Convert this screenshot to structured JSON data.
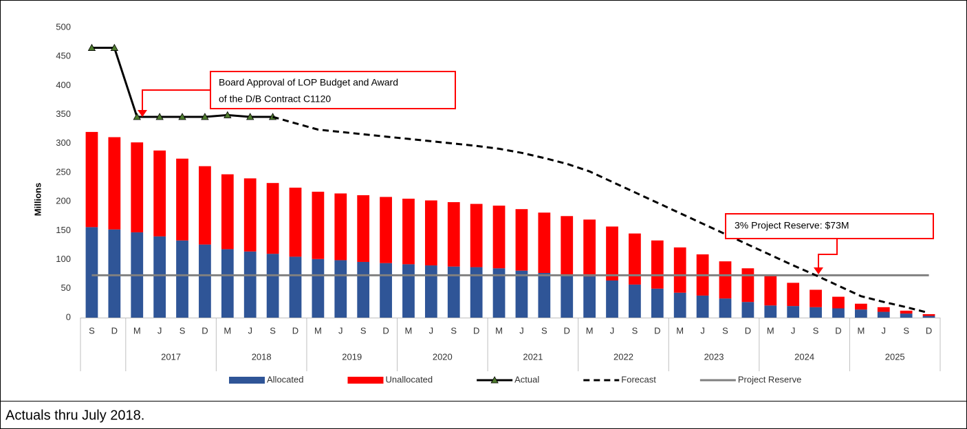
{
  "chart_data": {
    "type": "bar",
    "ylabel": "Millions",
    "ylim": [
      0,
      500
    ],
    "yticks": [
      0,
      50,
      100,
      150,
      200,
      250,
      300,
      350,
      400,
      450,
      500
    ],
    "groups": [
      {
        "label": null,
        "categories": [
          "S",
          "D"
        ]
      },
      {
        "label": "2017",
        "categories": [
          "M",
          "J",
          "S",
          "D"
        ]
      },
      {
        "label": "2018",
        "categories": [
          "M",
          "J",
          "S",
          "D"
        ]
      },
      {
        "label": "2019",
        "categories": [
          "M",
          "J",
          "S",
          "D"
        ]
      },
      {
        "label": "2020",
        "categories": [
          "M",
          "J",
          "S",
          "D"
        ]
      },
      {
        "label": "2021",
        "categories": [
          "M",
          "J",
          "S",
          "D"
        ]
      },
      {
        "label": "2022",
        "categories": [
          "M",
          "J",
          "S",
          "D"
        ]
      },
      {
        "label": "2023",
        "categories": [
          "M",
          "J",
          "S",
          "D"
        ]
      },
      {
        "label": "2024",
        "categories": [
          "M",
          "J",
          "S",
          "D"
        ]
      },
      {
        "label": "2025",
        "categories": [
          "M",
          "J",
          "S",
          "D"
        ]
      }
    ],
    "series": [
      {
        "name": "Allocated",
        "type": "bar",
        "color": "#2f5597",
        "values": [
          156,
          152,
          147,
          140,
          133,
          126,
          118,
          114,
          110,
          105,
          101,
          99,
          96,
          94,
          92,
          90,
          88,
          87,
          85,
          81,
          77,
          74,
          71,
          64,
          57,
          50,
          43,
          38,
          33,
          27,
          21,
          20,
          18,
          16,
          14,
          10,
          7,
          3
        ]
      },
      {
        "name": "Unallocated",
        "type": "bar",
        "color": "#ff0000",
        "values": [
          164,
          159,
          155,
          148,
          141,
          135,
          129,
          126,
          122,
          119,
          116,
          115,
          115,
          114,
          113,
          112,
          111,
          109,
          108,
          106,
          104,
          101,
          98,
          93,
          88,
          83,
          78,
          71,
          64,
          58,
          52,
          40,
          30,
          20,
          10,
          8,
          5,
          3
        ]
      },
      {
        "name": "Actual",
        "type": "line",
        "color": "#000000",
        "marker": "triangle",
        "marker_color": "#4e7a2e",
        "values": [
          465,
          465,
          346,
          346,
          346,
          346,
          349,
          346,
          346,
          null,
          null,
          null,
          null,
          null,
          null,
          null,
          null,
          null,
          null,
          null,
          null,
          null,
          null,
          null,
          null,
          null,
          null,
          null,
          null,
          null,
          null,
          null,
          null,
          null,
          null,
          null,
          null,
          null
        ]
      },
      {
        "name": "Forecast",
        "type": "line",
        "color": "#000000",
        "dashed": true,
        "values": [
          null,
          null,
          null,
          null,
          null,
          null,
          null,
          null,
          346,
          335,
          324,
          320,
          316,
          312,
          308,
          304,
          300,
          296,
          291,
          284,
          275,
          265,
          252,
          234,
          216,
          198,
          180,
          162,
          144,
          126,
          108,
          90,
          73,
          55,
          37,
          27,
          18,
          8
        ]
      },
      {
        "name": "Project Reserve",
        "type": "line",
        "color": "#808080",
        "values": [
          73,
          73,
          73,
          73,
          73,
          73,
          73,
          73,
          73,
          73,
          73,
          73,
          73,
          73,
          73,
          73,
          73,
          73,
          73,
          73,
          73,
          73,
          73,
          73,
          73,
          73,
          73,
          73,
          73,
          73,
          73,
          73,
          73,
          73,
          73,
          73,
          73,
          73
        ]
      }
    ],
    "annotations": [
      {
        "text": [
          "Board Approval of LOP Budget and Award",
          "of  the D/B Contract C1120"
        ]
      },
      {
        "text": "3% Project Reserve: $73M"
      }
    ],
    "note": "Actuals thru July 2018."
  }
}
